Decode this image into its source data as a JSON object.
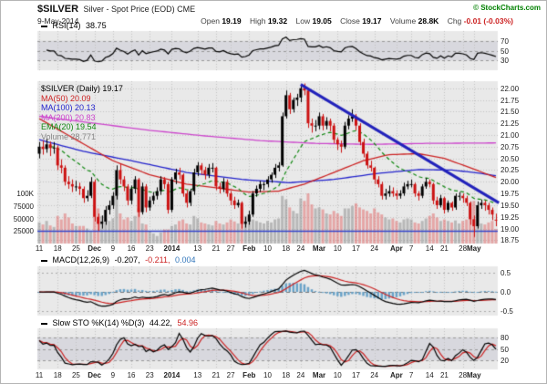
{
  "header": {
    "symbol": "$SILVER",
    "title": "Silver - Spot Price (EOD) CME",
    "date": "9-May-2014",
    "copyright": "© StockCharts.com",
    "quote": {
      "open_label": "Open",
      "open": "19.19",
      "high_label": "High",
      "high": "19.32",
      "low_label": "Low",
      "low": "19.05",
      "close_label": "Close",
      "close": "19.17",
      "volume_label": "Volume",
      "volume": "28.8K",
      "chg_label": "Chg",
      "chg": "-0.01 (-0.03%)"
    }
  },
  "rsi_panel": {
    "label": "RSI(14)",
    "value": "38.75",
    "ticks": [
      {
        "v": 70,
        "label": "70"
      },
      {
        "v": 50,
        "label": "50"
      },
      {
        "v": 30,
        "label": "30"
      }
    ]
  },
  "macd_panel": {
    "label": "MACD(12,26,9)",
    "values": [
      "-0.207,",
      "-0.211,",
      "0.004"
    ],
    "ticks": [
      {
        "v": 0.5,
        "label": "0.5"
      },
      {
        "v": 0,
        "label": "0.0"
      },
      {
        "v": -0.5,
        "label": "-0.5"
      }
    ]
  },
  "sto_panel": {
    "label": "Slow STO %K(14) %D(3)",
    "values": [
      "44.22,",
      "54.96"
    ],
    "ticks": [
      {
        "v": 80,
        "label": "80"
      },
      {
        "v": 50,
        "label": "50"
      },
      {
        "v": 20,
        "label": "20"
      }
    ]
  },
  "main_panel": {
    "legend": [
      {
        "text": "$SILVER (Daily) 19.17",
        "color": "#000000"
      },
      {
        "text": "MA(50) 20.09",
        "color": "#cc2222"
      },
      {
        "text": "MA(100) 20.13",
        "color": "#2222cc"
      },
      {
        "text": "MA(200) 20.83",
        "color": "#cc44cc"
      },
      {
        "text": "EMA(20) 19.54",
        "color": "#118811"
      },
      {
        "text": "Volume 28,771",
        "color": "#888888"
      }
    ],
    "price_ticks": [
      "22.00",
      "21.75",
      "21.50",
      "21.25",
      "21.00",
      "20.75",
      "20.50",
      "20.25",
      "20.00",
      "19.75",
      "19.50",
      "19.25",
      "19.00",
      "18.75"
    ],
    "volume_ticks": [
      {
        "v": 100,
        "label": "100K"
      },
      {
        "v": 75,
        "label": "75000"
      },
      {
        "v": 50,
        "label": "50000"
      },
      {
        "v": 25,
        "label": "25000"
      }
    ]
  },
  "x_ticks": [
    [
      0,
      "11"
    ],
    [
      5,
      "18"
    ],
    [
      10,
      "25"
    ],
    [
      15,
      "Dec"
    ],
    [
      20,
      "9"
    ],
    [
      25,
      "16"
    ],
    [
      30,
      "23"
    ],
    [
      36,
      "2014"
    ],
    [
      43,
      "13"
    ],
    [
      48,
      "21"
    ],
    [
      52,
      "27"
    ],
    [
      57,
      "Feb"
    ],
    [
      62,
      "10"
    ],
    [
      67,
      "18"
    ],
    [
      71,
      "24"
    ],
    [
      76,
      "Mar"
    ],
    [
      81,
      "10"
    ],
    [
      86,
      "17"
    ],
    [
      91,
      "24"
    ],
    [
      97,
      "Apr"
    ],
    [
      101,
      "7"
    ],
    [
      106,
      "14"
    ],
    [
      110,
      "21"
    ],
    [
      115,
      "28"
    ],
    [
      118,
      "May"
    ]
  ],
  "colors": {
    "panel_bg": "#e9e9e9",
    "grid": "#c2c2c2",
    "up": "#000000",
    "down": "#cc1111",
    "volume_up": "rgba(125,125,125,0.45)",
    "volume_down": "rgba(225,100,100,0.5)",
    "ma50": "#cc2222",
    "ma100": "#2222cc",
    "ma200": "#cc44cc",
    "ema": "#118811",
    "trend": "#2222bb",
    "support": "#3344cc",
    "rsi": "#000000",
    "band": "rgba(130,130,165,0.16)",
    "macd_hist": "#6aa3c8",
    "macd_line": "#000000",
    "signal_line": "#cc2222",
    "sto_k": "#000000",
    "sto_d": "#cc2222"
  },
  "chart_data": {
    "type": "candlestick",
    "title": "$SILVER Silver - Spot Price (EOD) CME",
    "date": "9-May-2014",
    "last": {
      "open": 19.19,
      "high": 19.32,
      "low": 19.05,
      "close": 19.17,
      "volume": "28.8K",
      "chg": "-0.01 (-0.03%)"
    },
    "price_range": [
      18.68,
      22.15
    ],
    "x_range_note": "daily bars, 11-Nov-2013 through 9-May-2014",
    "candles": [
      [
        20.6,
        20.85,
        20.5,
        20.75
      ],
      [
        20.75,
        20.88,
        20.58,
        20.7
      ],
      [
        20.7,
        20.92,
        20.62,
        20.8
      ],
      [
        20.8,
        20.86,
        20.55,
        20.72
      ],
      [
        20.72,
        20.85,
        20.6,
        20.73
      ],
      [
        20.73,
        20.78,
        20.25,
        20.35
      ],
      [
        20.35,
        20.48,
        20.18,
        20.3
      ],
      [
        20.3,
        20.35,
        19.92,
        20.0
      ],
      [
        20.0,
        20.12,
        19.85,
        19.95
      ],
      [
        19.95,
        20.05,
        19.78,
        19.9
      ],
      [
        19.9,
        20.02,
        19.8,
        19.9
      ],
      [
        19.9,
        19.98,
        19.72,
        19.85
      ],
      [
        19.85,
        19.9,
        19.55,
        19.65
      ],
      [
        19.65,
        19.82,
        19.58,
        19.7
      ],
      [
        19.7,
        20.1,
        19.65,
        20.0
      ],
      [
        20.0,
        20.05,
        19.15,
        19.25
      ],
      [
        19.25,
        19.32,
        18.95,
        19.1
      ],
      [
        19.1,
        19.28,
        19.0,
        19.15
      ],
      [
        19.15,
        19.48,
        19.08,
        19.4
      ],
      [
        19.4,
        19.6,
        19.3,
        19.5
      ],
      [
        19.5,
        19.78,
        19.42,
        19.7
      ],
      [
        19.7,
        20.35,
        19.62,
        20.25
      ],
      [
        20.25,
        20.38,
        19.95,
        20.05
      ],
      [
        20.05,
        20.12,
        19.8,
        19.9
      ],
      [
        19.9,
        19.95,
        19.5,
        19.6
      ],
      [
        19.6,
        19.92,
        19.52,
        19.85
      ],
      [
        19.85,
        20.12,
        19.75,
        20.05
      ],
      [
        20.05,
        20.08,
        19.25,
        19.35
      ],
      [
        19.35,
        19.98,
        19.3,
        19.9
      ],
      [
        19.9,
        19.95,
        19.35,
        19.45
      ],
      [
        19.45,
        19.68,
        19.38,
        19.6
      ],
      [
        19.6,
        19.78,
        19.52,
        19.7
      ],
      [
        19.7,
        19.88,
        19.62,
        19.8
      ],
      [
        19.8,
        20.12,
        19.72,
        20.05
      ],
      [
        20.05,
        20.1,
        19.85,
        19.95
      ],
      [
        19.95,
        20.0,
        19.32,
        19.4
      ],
      [
        19.4,
        20.1,
        19.35,
        20.05
      ],
      [
        20.05,
        20.28,
        19.95,
        20.2
      ],
      [
        20.2,
        20.3,
        20.05,
        20.15
      ],
      [
        20.15,
        20.18,
        19.68,
        19.75
      ],
      [
        19.75,
        19.82,
        19.45,
        19.55
      ],
      [
        19.55,
        19.85,
        19.48,
        19.8
      ],
      [
        19.8,
        20.28,
        19.72,
        20.2
      ],
      [
        20.2,
        20.42,
        20.12,
        20.35
      ],
      [
        20.35,
        20.4,
        20.15,
        20.25
      ],
      [
        20.25,
        20.32,
        20.05,
        20.15
      ],
      [
        20.15,
        20.38,
        20.08,
        20.3
      ],
      [
        20.3,
        20.4,
        20.2,
        20.3
      ],
      [
        20.3,
        20.32,
        19.82,
        19.9
      ],
      [
        19.9,
        19.98,
        19.75,
        19.85
      ],
      [
        19.85,
        20.08,
        19.78,
        20.0
      ],
      [
        20.0,
        20.05,
        19.68,
        19.75
      ],
      [
        19.75,
        19.8,
        19.5,
        19.6
      ],
      [
        19.6,
        19.68,
        19.42,
        19.5
      ],
      [
        19.5,
        19.62,
        19.45,
        19.55
      ],
      [
        19.55,
        19.58,
        19.0,
        19.1
      ],
      [
        19.1,
        19.25,
        19.02,
        19.15
      ],
      [
        19.15,
        19.38,
        19.08,
        19.3
      ],
      [
        19.3,
        19.8,
        19.25,
        19.75
      ],
      [
        19.75,
        19.92,
        19.68,
        19.85
      ],
      [
        19.85,
        20.02,
        19.78,
        19.95
      ],
      [
        19.95,
        20.0,
        19.82,
        19.95
      ],
      [
        19.95,
        20.12,
        19.88,
        20.05
      ],
      [
        20.05,
        20.2,
        19.98,
        20.15
      ],
      [
        20.15,
        20.38,
        20.08,
        20.3
      ],
      [
        20.3,
        20.42,
        20.22,
        20.35
      ],
      [
        20.35,
        21.48,
        20.32,
        21.4
      ],
      [
        21.4,
        21.95,
        21.35,
        21.85
      ],
      [
        21.85,
        21.9,
        21.45,
        21.55
      ],
      [
        21.55,
        21.8,
        21.48,
        21.75
      ],
      [
        21.75,
        21.88,
        21.62,
        21.8
      ],
      [
        21.8,
        22.05,
        21.7,
        22.0
      ],
      [
        22.0,
        22.1,
        21.85,
        21.95
      ],
      [
        21.95,
        22.0,
        21.15,
        21.25
      ],
      [
        21.25,
        21.35,
        21.05,
        21.2
      ],
      [
        21.2,
        21.32,
        21.08,
        21.2
      ],
      [
        21.2,
        21.48,
        21.12,
        21.4
      ],
      [
        21.4,
        21.45,
        21.1,
        21.2
      ],
      [
        21.2,
        21.38,
        21.12,
        21.3
      ],
      [
        21.3,
        21.35,
        21.08,
        21.2
      ],
      [
        21.2,
        21.25,
        20.82,
        20.9
      ],
      [
        20.9,
        20.95,
        20.68,
        20.8
      ],
      [
        20.8,
        20.88,
        20.62,
        20.75
      ],
      [
        20.75,
        21.28,
        20.7,
        21.2
      ],
      [
        21.2,
        21.42,
        21.12,
        21.35
      ],
      [
        21.35,
        21.55,
        21.28,
        21.4
      ],
      [
        21.4,
        21.45,
        21.1,
        21.2
      ],
      [
        21.2,
        21.25,
        20.78,
        20.85
      ],
      [
        20.85,
        20.92,
        20.52,
        20.6
      ],
      [
        20.6,
        20.65,
        20.28,
        20.35
      ],
      [
        20.35,
        20.45,
        20.22,
        20.3
      ],
      [
        20.3,
        20.32,
        19.95,
        20.05
      ],
      [
        20.05,
        20.12,
        19.88,
        19.95
      ],
      [
        19.95,
        20.0,
        19.62,
        19.7
      ],
      [
        19.7,
        19.85,
        19.62,
        19.75
      ],
      [
        19.75,
        19.92,
        19.68,
        19.8
      ],
      [
        19.8,
        19.88,
        19.68,
        19.75
      ],
      [
        19.75,
        19.82,
        19.62,
        19.7
      ],
      [
        19.7,
        19.82,
        19.64,
        19.75
      ],
      [
        19.75,
        19.98,
        19.7,
        19.9
      ],
      [
        19.9,
        20.02,
        19.84,
        19.95
      ],
      [
        19.95,
        20.05,
        19.88,
        19.95
      ],
      [
        19.95,
        19.98,
        19.68,
        19.75
      ],
      [
        19.75,
        19.8,
        19.6,
        19.7
      ],
      [
        19.7,
        19.95,
        19.65,
        19.9
      ],
      [
        19.9,
        20.08,
        19.85,
        20.0
      ],
      [
        20.0,
        20.05,
        19.88,
        19.95
      ],
      [
        19.95,
        19.98,
        19.52,
        19.6
      ],
      [
        19.6,
        19.68,
        19.42,
        19.5
      ],
      [
        19.5,
        19.72,
        19.45,
        19.65
      ],
      [
        19.65,
        19.68,
        19.32,
        19.4
      ],
      [
        19.4,
        19.6,
        19.35,
        19.55
      ],
      [
        19.55,
        19.58,
        19.38,
        19.45
      ],
      [
        19.45,
        19.75,
        19.4,
        19.7
      ],
      [
        19.7,
        19.78,
        19.6,
        19.7
      ],
      [
        19.7,
        19.75,
        19.55,
        19.65
      ],
      [
        19.65,
        19.7,
        19.48,
        19.55
      ],
      [
        19.55,
        19.58,
        19.08,
        19.2
      ],
      [
        19.2,
        19.28,
        18.82,
        19.05
      ],
      [
        19.05,
        19.58,
        19.0,
        19.5
      ],
      [
        19.5,
        19.62,
        19.42,
        19.55
      ],
      [
        19.55,
        19.6,
        19.38,
        19.5
      ],
      [
        19.5,
        19.55,
        19.3,
        19.4
      ],
      [
        19.4,
        19.45,
        19.18,
        19.3
      ],
      [
        19.19,
        19.32,
        19.05,
        19.17
      ]
    ],
    "volume_k": [
      42,
      38,
      45,
      36,
      33,
      55,
      48,
      60,
      52,
      40,
      35,
      35,
      35,
      30,
      25,
      75,
      70,
      55,
      48,
      45,
      50,
      95,
      60,
      48,
      52,
      45,
      55,
      70,
      40,
      38,
      25,
      20,
      15,
      22,
      28,
      28,
      35,
      38,
      45,
      48,
      40,
      38,
      55,
      50,
      42,
      40,
      38,
      36,
      45,
      40,
      38,
      42,
      48,
      44,
      40,
      72,
      55,
      52,
      48,
      45,
      42,
      40,
      45,
      42,
      48,
      50,
      95,
      88,
      72,
      65,
      60,
      90,
      85,
      100,
      78,
      70,
      72,
      68,
      60,
      58,
      65,
      60,
      55,
      70,
      70,
      75,
      80,
      72,
      68,
      65,
      60,
      70,
      62,
      58,
      52,
      48,
      50,
      45,
      42,
      48,
      50,
      48,
      42,
      40,
      45,
      50,
      55,
      60,
      52,
      45,
      48,
      45,
      42,
      46,
      40,
      45,
      48,
      70,
      85,
      60,
      40,
      38,
      42,
      45,
      29
    ],
    "overlays": {
      "ma50_points": [
        [
          0,
          21.35
        ],
        [
          10,
          20.9
        ],
        [
          20,
          20.45
        ],
        [
          30,
          20.15
        ],
        [
          40,
          19.95
        ],
        [
          50,
          19.85
        ],
        [
          57,
          19.78
        ],
        [
          65,
          19.8
        ],
        [
          72,
          19.95
        ],
        [
          80,
          20.2
        ],
        [
          88,
          20.45
        ],
        [
          95,
          20.58
        ],
        [
          103,
          20.6
        ],
        [
          110,
          20.5
        ],
        [
          117,
          20.3
        ],
        [
          124,
          20.09
        ]
      ],
      "ma100_points": [
        [
          0,
          20.9
        ],
        [
          12,
          20.65
        ],
        [
          25,
          20.45
        ],
        [
          40,
          20.2
        ],
        [
          55,
          20.05
        ],
        [
          68,
          19.98
        ],
        [
          80,
          20.05
        ],
        [
          92,
          20.18
        ],
        [
          103,
          20.26
        ],
        [
          112,
          20.25
        ],
        [
          118,
          20.2
        ],
        [
          124,
          20.13
        ]
      ],
      "ma200_points": [
        [
          0,
          21.4
        ],
        [
          15,
          21.25
        ],
        [
          30,
          21.1
        ],
        [
          45,
          20.98
        ],
        [
          60,
          20.88
        ],
        [
          75,
          20.82
        ],
        [
          90,
          20.8
        ],
        [
          105,
          20.82
        ],
        [
          124,
          20.83
        ]
      ],
      "ema_period": 20
    },
    "annotations": {
      "trendline": {
        "from": [
          71,
          22.08
        ],
        "to": [
          124.8,
          19.55
        ]
      },
      "support_line_price": 18.95
    },
    "indicators": {
      "rsi_period": 14,
      "rsi_last": 38.75,
      "macd_params": [
        12,
        26,
        9
      ],
      "macd_last": [
        -0.207,
        -0.211,
        0.004
      ],
      "sto_params": [
        14,
        3
      ],
      "sto_last": [
        44.22,
        54.96
      ]
    }
  }
}
